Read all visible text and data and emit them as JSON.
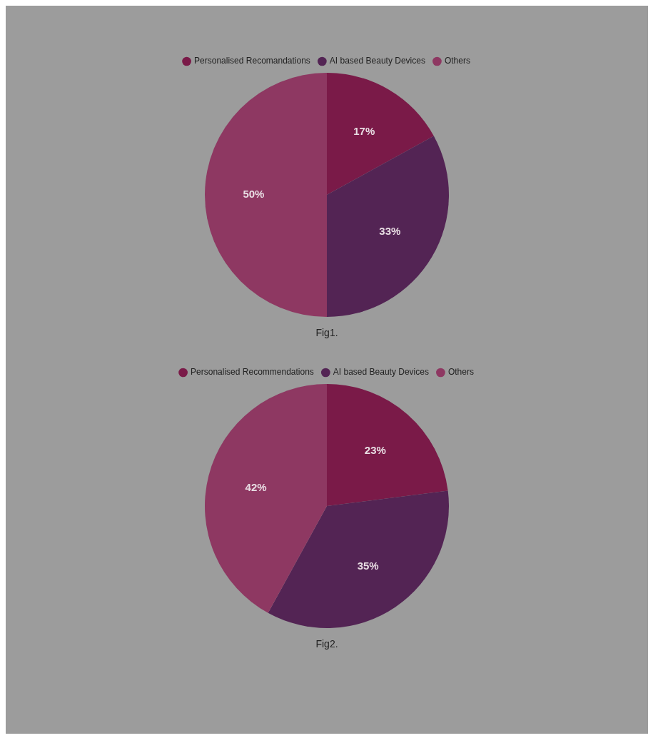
{
  "chart_data": [
    {
      "type": "pie",
      "categories": [
        "Personalised Recomandations",
        "AI based Beauty Devices",
        "Others"
      ],
      "values": [
        17,
        33,
        50
      ],
      "value_labels": [
        "17%",
        "33%",
        "50%"
      ],
      "colors": [
        "#7a1a48",
        "#532454",
        "#8e3862"
      ],
      "legend": "top",
      "annotations": [
        "Fig1."
      ]
    },
    {
      "type": "pie",
      "categories": [
        "Personalised Recommendations",
        "AI based Beauty Devices",
        "Others"
      ],
      "values": [
        23,
        35,
        42
      ],
      "value_labels": [
        "23%",
        "35%",
        "42%"
      ],
      "colors": [
        "#7a1a48",
        "#532454",
        "#8e3862"
      ],
      "legend": "top",
      "annotations": [
        "Fig2."
      ]
    }
  ]
}
